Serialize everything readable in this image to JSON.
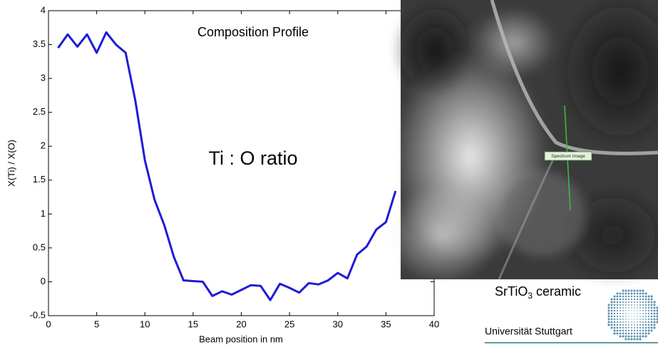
{
  "chart_data": {
    "type": "line",
    "title": "Composition Profile",
    "annotation": "Ti : O ratio",
    "x_label": "Beam position  in nm",
    "y_label": "X(Ti) / X(O)",
    "x": [
      1,
      2,
      3,
      4,
      5,
      6,
      7,
      8,
      9,
      10,
      11,
      12,
      13,
      14,
      15,
      16,
      17,
      18,
      19,
      20,
      21,
      22,
      23,
      24,
      25,
      26,
      27,
      28,
      29,
      30,
      31,
      32,
      33,
      34,
      35,
      36
    ],
    "series": [
      {
        "color": "#1c1cd6",
        "values": [
          3.45,
          3.65,
          3.47,
          3.65,
          3.38,
          3.68,
          3.5,
          3.38,
          2.68,
          1.79,
          1.21,
          0.84,
          0.37,
          0.02,
          0.01,
          0.0,
          -0.21,
          -0.14,
          -0.19,
          -0.12,
          -0.05,
          -0.06,
          -0.27,
          -0.03,
          -0.09,
          -0.16,
          -0.02,
          -0.04,
          0.02,
          0.13,
          0.05,
          0.4,
          0.52,
          0.77,
          0.88,
          1.34
        ]
      }
    ],
    "xlim": [
      0,
      40
    ],
    "xticks": [
      0,
      5,
      10,
      15,
      20,
      25,
      30,
      35,
      40
    ],
    "ylim": [
      -0.5,
      4
    ],
    "yticks": [
      -0.5,
      0,
      0.5,
      1,
      1.5,
      2,
      2.5,
      3,
      3.5,
      4
    ]
  },
  "image": {
    "marker_label": "Spectrum Image"
  },
  "logo": {
    "material": "SrTiO",
    "subscript": "3",
    "suffix": "ceramic",
    "institution": "Universität Stuttgart"
  }
}
